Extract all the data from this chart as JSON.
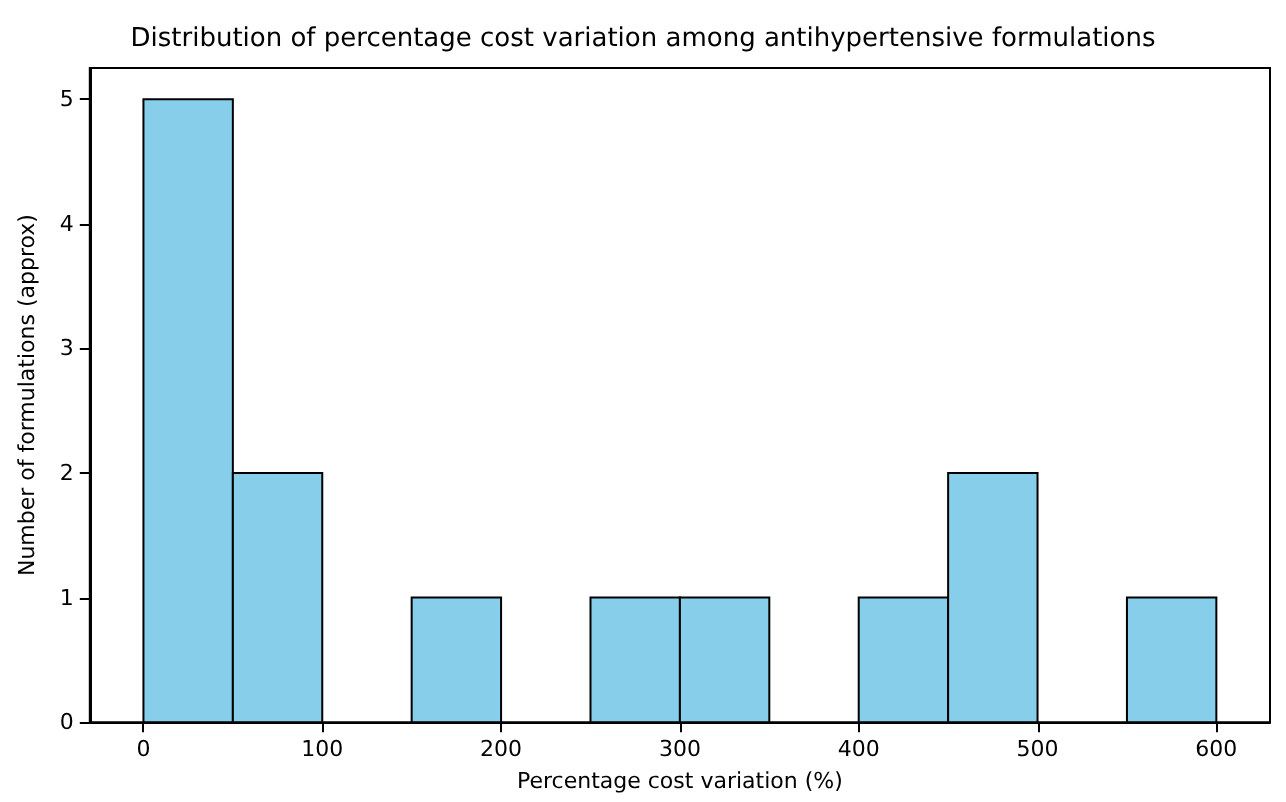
{
  "chart_data": {
    "type": "histogram",
    "title": "Distribution of percentage cost variation among antihypertensive formulations",
    "xlabel": "Percentage cost variation (%)",
    "ylabel": "Number of formulations (approx)",
    "bins": [
      0,
      50,
      100,
      150,
      200,
      250,
      300,
      350,
      400,
      450,
      500,
      550,
      600
    ],
    "values": [
      5,
      2,
      0,
      1,
      0,
      1,
      1,
      0,
      1,
      2,
      0,
      1
    ],
    "color": "#87ceeb",
    "xlim": [
      -30,
      630
    ],
    "xticks": [
      0,
      100,
      200,
      300,
      400,
      500,
      600
    ],
    "ylim": [
      0,
      5.25
    ],
    "yticks": [
      0,
      1,
      2,
      3,
      4,
      5
    ]
  }
}
